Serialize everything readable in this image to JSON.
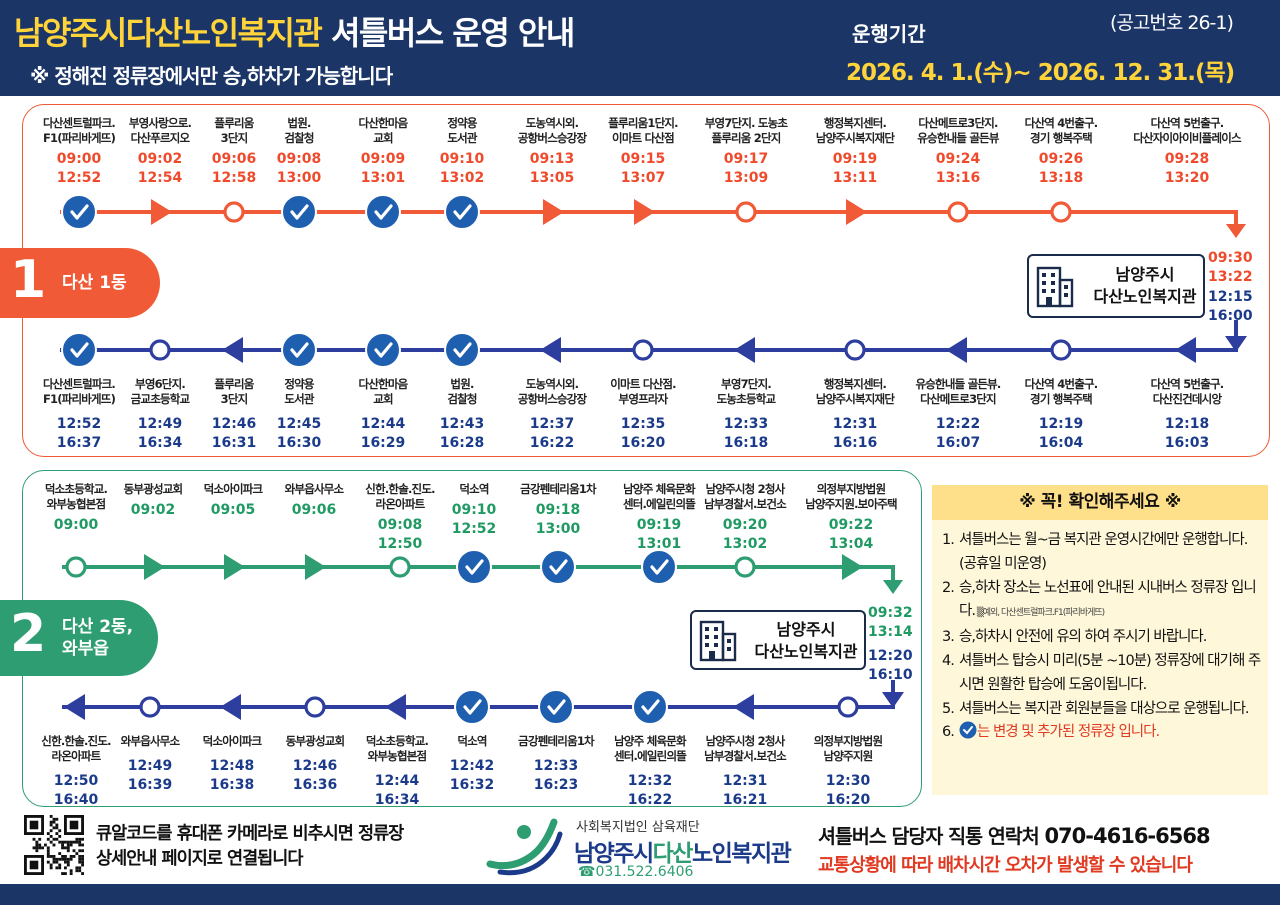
{
  "header": {
    "title_main": "남양주시다산노인복지관",
    "title_rest": " 셔틀버스 운영 안내",
    "subtitle": "※ 정해진 정류장에서만 승,하차가 가능합니다",
    "period_label": "운행기간",
    "period": "2026. 4. 1.(수)~ 2026. 12. 31.(목)",
    "notice_no": "(공고번호 26-1)"
  },
  "route1": {
    "number": "1",
    "name": "다산 1동",
    "color": "#f15a36",
    "return_color": "#2e3e9e",
    "end_times_out": [
      "09:30",
      "13:22"
    ],
    "end_times_ret": [
      "12:15",
      "16:00"
    ],
    "outbound": [
      {
        "name": [
          "다산센트럴파크.",
          "F1(파리바게뜨)"
        ],
        "times": [
          "09:00",
          "12:52"
        ],
        "marker": "check"
      },
      {
        "name": [
          "부영사랑으로.",
          "다산푸르지오"
        ],
        "times": [
          "09:02",
          "12:54"
        ],
        "marker": "arrow"
      },
      {
        "name": [
          "플루리움",
          "3단지"
        ],
        "times": [
          "09:06",
          "12:58"
        ],
        "marker": "circle"
      },
      {
        "name": [
          "법원.",
          "검찰청"
        ],
        "times": [
          "09:08",
          "13:00"
        ],
        "marker": "check"
      },
      {
        "name": [
          "다산한마음",
          "교회"
        ],
        "times": [
          "09:09",
          "13:01"
        ],
        "marker": "check"
      },
      {
        "name": [
          "정약용",
          "도서관"
        ],
        "times": [
          "09:10",
          "13:02"
        ],
        "marker": "check"
      },
      {
        "name": [
          "도농역시외.",
          "공항버스승강장"
        ],
        "times": [
          "09:13",
          "13:05"
        ],
        "marker": "arrow"
      },
      {
        "name": [
          "플루리움1단지.",
          "이마트 다산점"
        ],
        "times": [
          "09:15",
          "13:07"
        ],
        "marker": "arrow"
      },
      {
        "name": [
          "부영7단지. 도농초",
          "플루리움 2단지"
        ],
        "times": [
          "09:17",
          "13:09"
        ],
        "marker": "circle"
      },
      {
        "name": [
          "행정복지센터.",
          "남양주시복지재단"
        ],
        "times": [
          "09:19",
          "13:11"
        ],
        "marker": "arrow"
      },
      {
        "name": [
          "다산메트로3단지.",
          "유승한내들 골든뷰"
        ],
        "times": [
          "09:24",
          "13:16"
        ],
        "marker": "circle"
      },
      {
        "name": [
          "다산역 4번출구.",
          "경기 행복주택"
        ],
        "times": [
          "09:26",
          "13:18"
        ],
        "marker": "circle"
      },
      {
        "name": [
          "다산역 5번출구.",
          "다산자이아이비플레이스"
        ],
        "times": [
          "09:28",
          "13:20"
        ],
        "marker": "none"
      }
    ],
    "inbound": [
      {
        "name": [
          "다산센트럴파크.",
          "F1(파리바게뜨)"
        ],
        "times": [
          "12:52",
          "16:37"
        ],
        "marker": "check"
      },
      {
        "name": [
          "부영6단지.",
          "금교초등학교"
        ],
        "times": [
          "12:49",
          "16:34"
        ],
        "marker": "circle"
      },
      {
        "name": [
          "플루리움",
          "3단지"
        ],
        "times": [
          "12:46",
          "16:31"
        ],
        "marker": "arrow"
      },
      {
        "name": [
          "정약용",
          "도서관"
        ],
        "times": [
          "12:45",
          "16:30"
        ],
        "marker": "check"
      },
      {
        "name": [
          "다산한마음",
          "교회"
        ],
        "times": [
          "12:44",
          "16:29"
        ],
        "marker": "check"
      },
      {
        "name": [
          "법원.",
          "검찰청"
        ],
        "times": [
          "12:43",
          "16:28"
        ],
        "marker": "check"
      },
      {
        "name": [
          "도농역시외.",
          "공항버스승강장"
        ],
        "times": [
          "12:37",
          "16:22"
        ],
        "marker": "arrow"
      },
      {
        "name": [
          "이마트 다산점.",
          "부영프라자"
        ],
        "times": [
          "12:35",
          "16:20"
        ],
        "marker": "circle"
      },
      {
        "name": [
          "부영7단지.",
          "도농초등학교"
        ],
        "times": [
          "12:33",
          "16:18"
        ],
        "marker": "arrow"
      },
      {
        "name": [
          "행정복지센터.",
          "남양주시복지재단"
        ],
        "times": [
          "12:31",
          "16:16"
        ],
        "marker": "circle"
      },
      {
        "name": [
          "유승한내들 골든뷰.",
          "다산메트로3단지"
        ],
        "times": [
          "12:22",
          "16:07"
        ],
        "marker": "arrow"
      },
      {
        "name": [
          "다산역 4번출구.",
          "경기 행복주택"
        ],
        "times": [
          "12:19",
          "16:04"
        ],
        "marker": "circle"
      },
      {
        "name": [
          "다산역 5번출구.",
          "다산진건데시앙"
        ],
        "times": [
          "12:18",
          "16:03"
        ],
        "marker": "arrow"
      }
    ]
  },
  "route2": {
    "number": "2",
    "name": [
      "다산 2동,",
      "와부읍"
    ],
    "color": "#2e9e72",
    "return_color": "#2e3e9e",
    "end_times_out": [
      "09:32",
      "13:14"
    ],
    "end_times_ret": [
      "12:20",
      "16:10"
    ],
    "outbound": [
      {
        "name": [
          "덕소초등학교.",
          "와부농협본점"
        ],
        "times": [
          "09:00"
        ],
        "marker": "circle"
      },
      {
        "name": [
          "동부광성교회"
        ],
        "times": [
          "09:02"
        ],
        "marker": "arrow"
      },
      {
        "name": [
          "덕소아이파크"
        ],
        "times": [
          "09:05"
        ],
        "marker": "arrow"
      },
      {
        "name": [
          "와부읍사무소"
        ],
        "times": [
          "09:06"
        ],
        "marker": "arrow"
      },
      {
        "name": [
          "신한.한솔.진도.",
          "라온아파트"
        ],
        "times": [
          "09:08",
          "12:50"
        ],
        "marker": "circle"
      },
      {
        "name": [
          "덕소역"
        ],
        "times": [
          "09:10",
          "12:52"
        ],
        "marker": "check"
      },
      {
        "name": [
          "금강펜테리움1차"
        ],
        "times": [
          "09:18",
          "13:00"
        ],
        "marker": "check"
      },
      {
        "name": [
          "남양주 체육문화",
          "센터.에일린의뜰"
        ],
        "times": [
          "09:19",
          "13:01"
        ],
        "marker": "check"
      },
      {
        "name": [
          "남양주시청 2청사",
          "남부경찰서.보건소"
        ],
        "times": [
          "09:20",
          "13:02"
        ],
        "marker": "circle"
      },
      {
        "name": [
          "의정부지방법원",
          "남양주지원.보아주택"
        ],
        "times": [
          "09:22",
          "13:04"
        ],
        "marker": "arrow"
      }
    ],
    "inbound": [
      {
        "name": [
          "신한.한솔.진도.",
          "라온아파트"
        ],
        "times": [
          "12:50",
          "16:40"
        ],
        "marker": "arrow"
      },
      {
        "name": [
          "와부읍사무소"
        ],
        "times": [
          "12:49",
          "16:39"
        ],
        "marker": "circle"
      },
      {
        "name": [
          "덕소아이파크"
        ],
        "times": [
          "12:48",
          "16:38"
        ],
        "marker": "arrow"
      },
      {
        "name": [
          "동부광성교회"
        ],
        "times": [
          "12:46",
          "16:36"
        ],
        "marker": "circle"
      },
      {
        "name": [
          "덕소초등학교.",
          "와부농협본점"
        ],
        "times": [
          "12:44",
          "16:34"
        ],
        "marker": "arrow"
      },
      {
        "name": [
          "덕소역"
        ],
        "times": [
          "12:42",
          "16:32"
        ],
        "marker": "check"
      },
      {
        "name": [
          "금강펜테리움1차"
        ],
        "times": [
          "12:33",
          "16:23"
        ],
        "marker": "check"
      },
      {
        "name": [
          "남양주 체육문화",
          "센터.에일린의뜰"
        ],
        "times": [
          "12:32",
          "16:22"
        ],
        "marker": "check"
      },
      {
        "name": [
          "남양주시청 2청사",
          "남부경찰서.보건소"
        ],
        "times": [
          "12:31",
          "16:21"
        ],
        "marker": "arrow"
      },
      {
        "name": [
          "의정부지방법원",
          "남양주지원"
        ],
        "times": [
          "12:30",
          "16:20"
        ],
        "marker": "circle"
      }
    ]
  },
  "center_label": [
    "남양주시",
    "다산노인복지관"
  ],
  "notes": {
    "heading": "※  꼭! 확인해주세요  ※",
    "items": [
      {
        "n": "1.",
        "text": "셔틀버스는 월~금 복지관 운영시간에만 운행합니다. (공휴일 미운영)"
      },
      {
        "n": "2.",
        "text": "승,하차 장소는 노선표에 안내된 시내버스 정류장 입니다.",
        "small": "▒예외, 다산센트럴파크.F1(파리바게뜨)"
      },
      {
        "n": "3.",
        "text": "승,하차시 안전에 유의 하여 주시기 바랍니다."
      },
      {
        "n": "4.",
        "text": "셔틀버스 탑승시 미리(5분 ~10분) 정류장에 대기해 주시면 원활한 탑승에 도움이됩니다."
      },
      {
        "n": "5.",
        "text": "셔틀버스는 복지관 회원분들을 대상으로 운행됩니다."
      },
      {
        "n": "6.",
        "text": "는 변경 및 추가된 정류장 입니다.",
        "red": true
      }
    ]
  },
  "footer": {
    "qr_text": [
      "큐알코드를 휴대폰 카메라로 비추시면 정류장",
      "상세안내 페이지로 연결됩니다"
    ],
    "org_sub": "사회복지법인 삼육재단",
    "org_main_a": "남양주시",
    "org_main_b": "다산",
    "org_main_c": "노인복지관",
    "org_tel": "☎031.522.6406",
    "contact_label": "셔틀버스 담당자 직통 연락처 ",
    "contact_number": "070-4616-6568",
    "warning": "교통상황에 따라 배차시간 오차가 발생할 수 있습니다"
  },
  "icons": {
    "check": "check-circle-icon",
    "circle": "stop-circle-icon",
    "arrow": "direction-arrow-icon",
    "building": "building-icon",
    "qr": "qr-code-icon"
  }
}
